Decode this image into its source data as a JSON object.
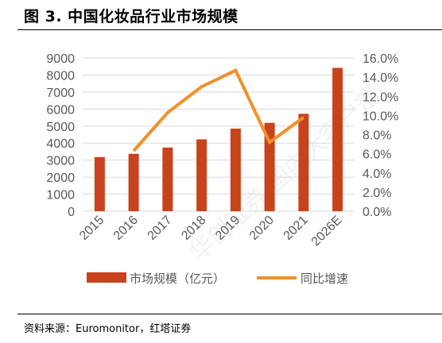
{
  "figure": {
    "title": "图 3. 中国化妆品行业市场规模",
    "source": "资料来源：Euromonitor，红塔证券",
    "watermark": "华创证券-国内大客户部",
    "colors": {
      "bar": "#C8421C",
      "line": "#F0902A",
      "axis_text": "#595959",
      "grid": "#D9D9D9",
      "rule": "#000000"
    }
  },
  "chart_data": {
    "type": "bar",
    "title": "",
    "categories": [
      "2015",
      "2016",
      "2017",
      "2018",
      "2019",
      "2020",
      "2021",
      "2026E"
    ],
    "series": [
      {
        "name": "市场规模（亿元）",
        "type": "bar",
        "axis": "left",
        "values": [
          3180,
          3370,
          3740,
          4220,
          4850,
          5190,
          5720,
          8420
        ]
      },
      {
        "name": "同比增速",
        "type": "line",
        "axis": "right",
        "values": [
          null,
          0.063,
          0.103,
          0.13,
          0.147,
          0.072,
          0.098,
          null
        ]
      }
    ],
    "y_left": {
      "range": [
        0,
        9000
      ],
      "ticks": [
        0,
        1000,
        2000,
        3000,
        4000,
        5000,
        6000,
        7000,
        8000,
        9000
      ],
      "tick_labels": [
        "0",
        "1000",
        "2000",
        "3000",
        "4000",
        "5000",
        "6000",
        "7000",
        "8000",
        "9000"
      ]
    },
    "y_right": {
      "range": [
        0,
        0.16
      ],
      "ticks": [
        0,
        0.02,
        0.04,
        0.06,
        0.08,
        0.1,
        0.12,
        0.14,
        0.16
      ],
      "tick_labels": [
        "0.0%",
        "2.0%",
        "4.0%",
        "6.0%",
        "8.0%",
        "10.0%",
        "12.0%",
        "14.0%",
        "16.0%"
      ]
    },
    "grid": true,
    "legend": "bottom"
  }
}
